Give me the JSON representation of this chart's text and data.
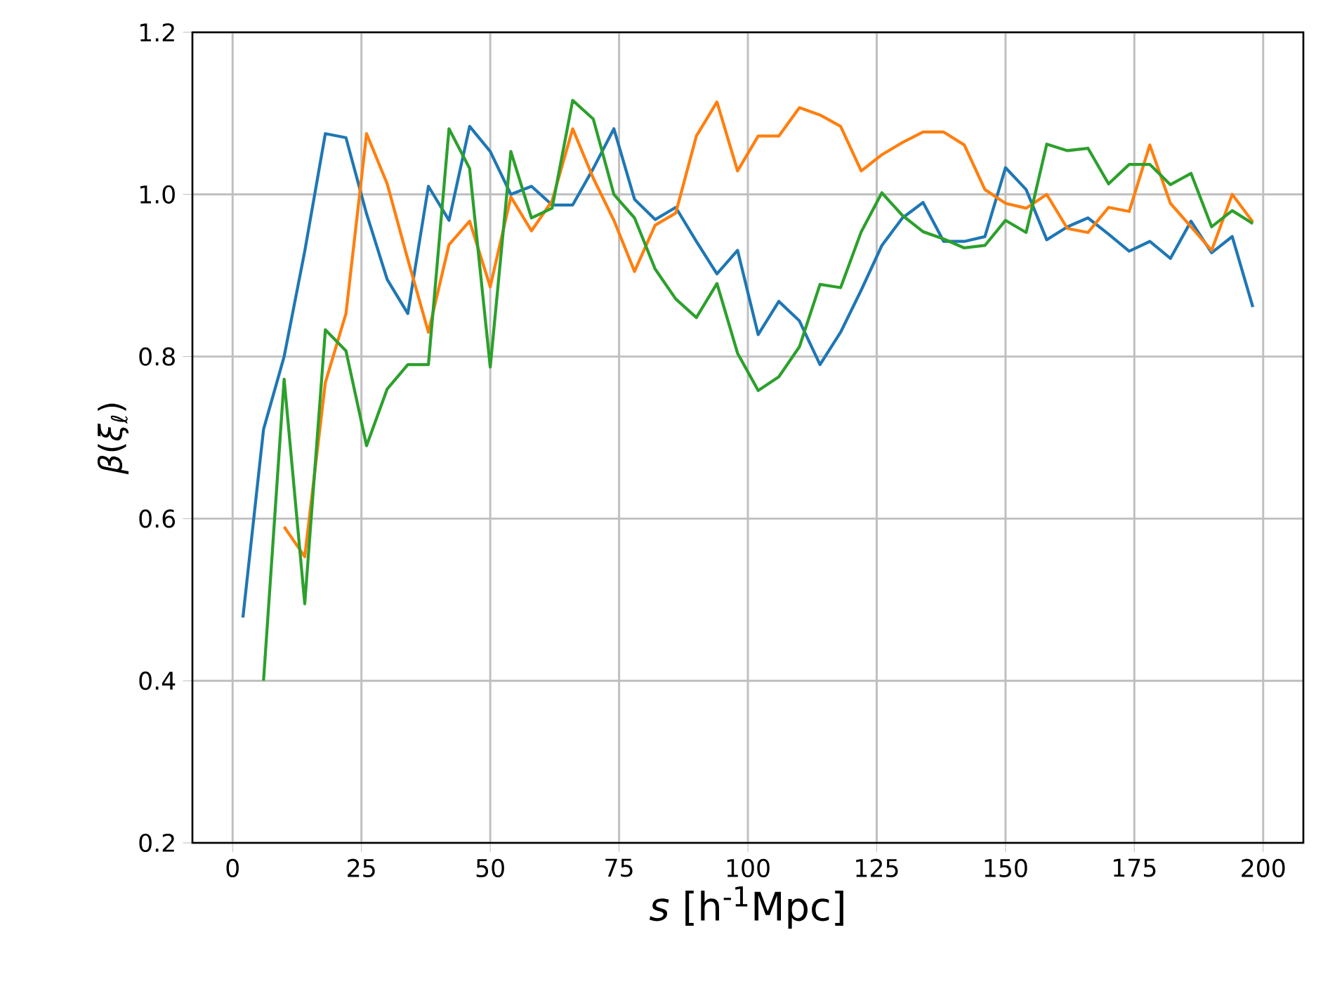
{
  "chart_data": {
    "type": "line",
    "xlabel": "*s* [h$^{-1}$Mpc]",
    "ylabel": "*β*(*ξ*$_{ℓ}$)",
    "x": [
      2,
      6,
      10,
      14,
      18,
      22,
      26,
      30,
      34,
      38,
      42,
      46,
      50,
      54,
      58,
      62,
      66,
      70,
      74,
      78,
      82,
      86,
      90,
      94,
      98,
      102,
      106,
      110,
      114,
      118,
      122,
      126,
      130,
      134,
      138,
      142,
      146,
      150,
      154,
      158,
      162,
      166,
      170,
      174,
      178,
      182,
      186,
      190,
      194,
      198
    ],
    "series": [
      {
        "color": "#1f77b4",
        "values": [
          0.478,
          0.71,
          0.8,
          0.93,
          1.075,
          1.07,
          0.976,
          0.895,
          0.853,
          1.01,
          0.968,
          1.084,
          1.053,
          1.0,
          1.01,
          0.987,
          0.987,
          1.032,
          1.081,
          0.994,
          0.969,
          0.984,
          0.942,
          0.902,
          0.931,
          0.827,
          0.868,
          0.844,
          0.79,
          0.83,
          0.882,
          0.937,
          0.971,
          0.99,
          0.942,
          0.942,
          0.948,
          1.033,
          1.006,
          0.944,
          0.96,
          0.971,
          0.951,
          0.93,
          0.942,
          0.921,
          0.967,
          0.928,
          0.948,
          0.861
        ]
      },
      {
        "color": "#ff7f0e",
        "values": [
          null,
          null,
          0.59,
          0.553,
          0.768,
          0.853,
          1.075,
          1.013,
          0.92,
          0.83,
          0.938,
          0.967,
          0.886,
          0.997,
          0.955,
          0.992,
          1.081,
          1.02,
          0.968,
          0.905,
          0.962,
          0.977,
          1.072,
          1.114,
          1.029,
          1.072,
          1.072,
          1.107,
          1.098,
          1.084,
          1.029,
          1.049,
          1.064,
          1.077,
          1.077,
          1.061,
          1.006,
          0.989,
          0.983,
          1.0,
          0.958,
          0.953,
          0.984,
          0.979,
          1.061,
          0.989,
          0.96,
          0.931,
          1.0,
          0.966
        ]
      },
      {
        "color": "#2ca02c",
        "values": [
          null,
          0.4,
          0.772,
          0.495,
          0.833,
          0.807,
          0.69,
          0.76,
          0.79,
          0.79,
          1.081,
          1.032,
          0.787,
          1.053,
          0.971,
          0.983,
          1.116,
          1.093,
          1.0,
          0.971,
          0.908,
          0.871,
          0.848,
          0.89,
          0.804,
          0.758,
          0.775,
          0.812,
          0.889,
          0.885,
          0.954,
          1.002,
          0.974,
          0.954,
          0.945,
          0.934,
          0.937,
          0.968,
          0.953,
          1.062,
          1.054,
          1.057,
          1.013,
          1.037,
          1.037,
          1.012,
          1.026,
          0.96,
          0.98,
          0.964
        ]
      }
    ],
    "xlim": [
      -7.8,
      207.8
    ],
    "ylim": [
      0.2,
      1.2
    ],
    "xticks": [
      0,
      25,
      50,
      75,
      100,
      125,
      150,
      175,
      200
    ],
    "yticks": [
      0.2,
      0.4,
      0.6,
      0.8,
      {
        "value": 1.0,
        "label": "1.0"
      },
      1.2
    ],
    "grid": true
  }
}
